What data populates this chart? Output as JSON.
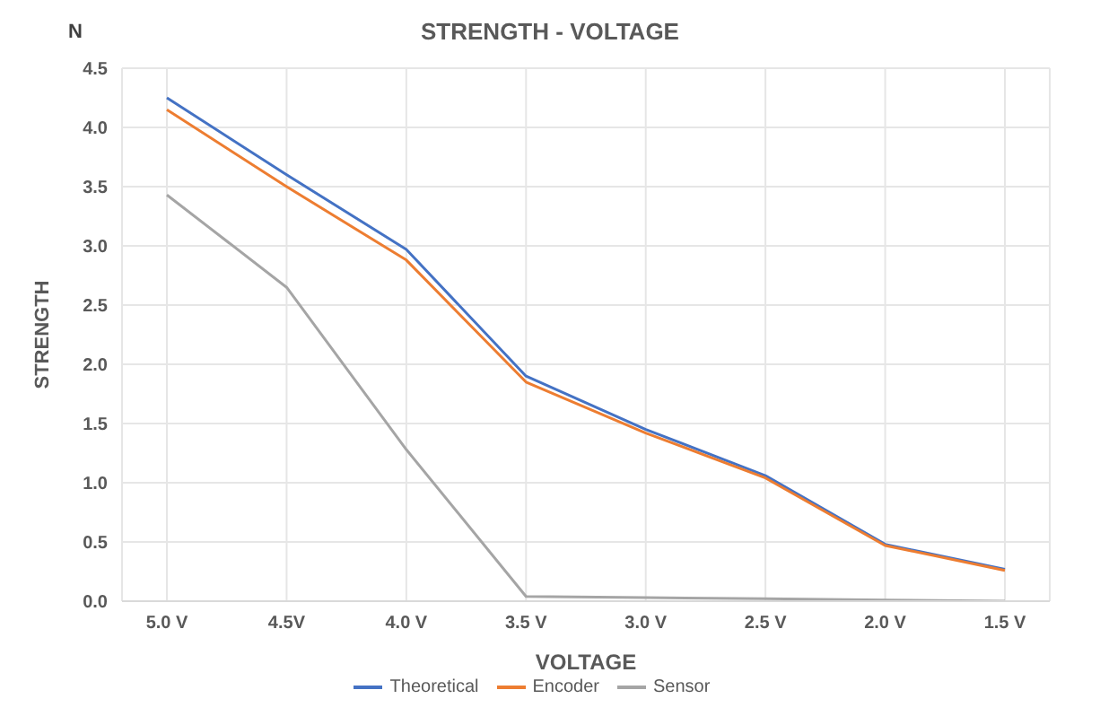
{
  "chart_data": {
    "type": "line",
    "title": "STRENGTH - VOLTAGE",
    "xlabel": "VOLTAGE",
    "ylabel": "STRENGTH",
    "annotations": [
      "N"
    ],
    "categories": [
      "5.0 V",
      "4.5V",
      "4.0 V",
      "3.5 V",
      "3.0 V",
      "2.5 V",
      "2.0 V",
      "1.5 V"
    ],
    "series": [
      {
        "name": "Theoretical",
        "color": "#4472c4",
        "values": [
          4.25,
          3.6,
          2.97,
          1.9,
          1.45,
          1.06,
          0.48,
          0.27
        ]
      },
      {
        "name": "Encoder",
        "color": "#ed7d31",
        "values": [
          4.15,
          3.5,
          2.88,
          1.85,
          1.42,
          1.04,
          0.47,
          0.26
        ]
      },
      {
        "name": "Sensor",
        "color": "#a5a5a5",
        "values": [
          3.43,
          2.65,
          1.28,
          0.04,
          0.03,
          0.02,
          0.01,
          0
        ]
      }
    ],
    "ylim": [
      0,
      4.5
    ],
    "yticks": [
      {
        "value": 0,
        "label": "0.0"
      },
      0.5,
      {
        "value": 1,
        "label": "1.0"
      },
      1.5,
      {
        "value": 2,
        "label": "2.0"
      },
      2.5,
      {
        "value": 3,
        "label": "3.0"
      },
      3.5,
      {
        "value": 4,
        "label": "4.0"
      },
      4.5
    ],
    "grid": true,
    "legend": "bottom",
    "marker": "none",
    "line_style": "solid"
  }
}
